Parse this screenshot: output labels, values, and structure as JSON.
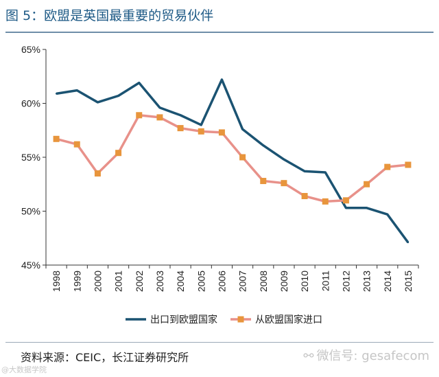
{
  "figure": {
    "title": "图 5：欧盟是英国最重要的贸易伙伴",
    "source": "资料来源：CEIC，长江证券研究所",
    "watermark": "微信号: gesafecom",
    "watermark_icon": "wechat-icon",
    "corner_mark": "@大数据学院"
  },
  "colors": {
    "title": "#1e5a86",
    "export_line": "#1b5372",
    "import_line": "#e8918a",
    "import_marker": "#e8953c"
  },
  "chart_data": {
    "type": "line",
    "title": "",
    "xlabel": "",
    "ylabel": "",
    "x": [
      "1998",
      "1999",
      "2000",
      "2001",
      "2002",
      "2003",
      "2004",
      "2005",
      "2006",
      "2007",
      "2008",
      "2009",
      "2010",
      "2011",
      "2012",
      "2013",
      "2014",
      "2015"
    ],
    "ylim": [
      45,
      65
    ],
    "yticks": [
      45,
      50,
      55,
      60,
      65
    ],
    "ytick_labels": [
      "45%",
      "50%",
      "55%",
      "60%",
      "65%"
    ],
    "grid": false,
    "legend_position": "bottom-center",
    "series": [
      {
        "name": "出口到欧盟国家",
        "marker": "none",
        "values": [
          60.9,
          61.2,
          60.1,
          60.7,
          61.9,
          59.6,
          58.9,
          58.0,
          62.2,
          57.6,
          56.1,
          54.8,
          53.7,
          53.6,
          50.3,
          50.3,
          49.7,
          47.1
        ]
      },
      {
        "name": "从欧盟国家进口",
        "marker": "square",
        "values": [
          56.7,
          56.2,
          53.5,
          55.4,
          58.9,
          58.7,
          57.7,
          57.4,
          57.3,
          55.0,
          52.8,
          52.6,
          51.4,
          50.9,
          51.0,
          52.5,
          54.1,
          54.3
        ]
      }
    ]
  }
}
